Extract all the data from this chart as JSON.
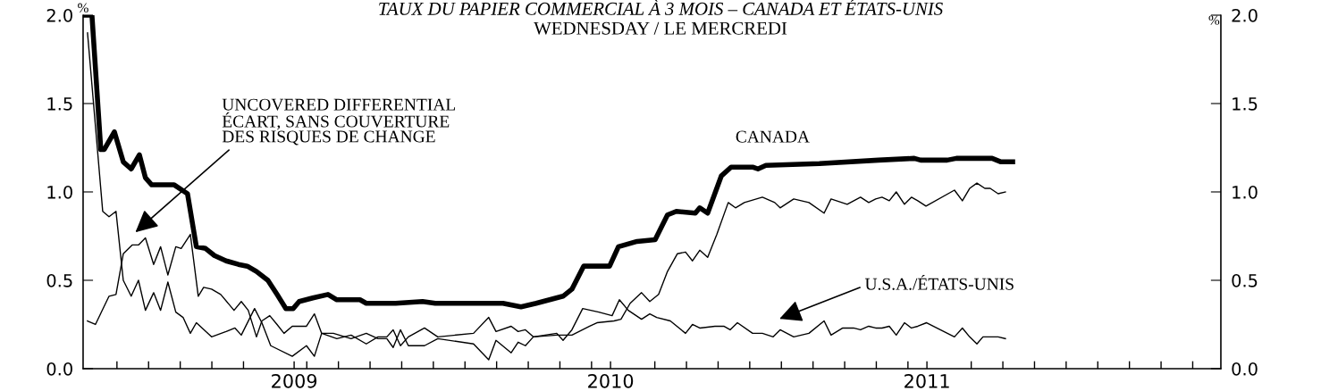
{
  "chart_data": {
    "type": "line",
    "title": "TAUX DU PAPIER COMMERCIAL À 3 MOIS – CANADA ET ÉTATS-UNIS",
    "subtitle": "WEDNESDAY / LE MERCREDI",
    "ylabel": "%",
    "y2label": "%",
    "series": [
      {
        "color": "#000000",
        "x": [
          2008.338,
          2008.361,
          2008.389,
          2008.4,
          2008.432,
          2008.46,
          2008.485,
          2008.511,
          2008.53,
          2008.55,
          2008.621,
          2008.663,
          2008.691,
          2008.72,
          2008.748,
          2008.785,
          2008.824,
          2008.852,
          2008.881,
          2008.917,
          2008.946,
          2008.974,
          2008.997,
          2009.016,
          2009.059,
          2009.107,
          2009.135,
          2009.208,
          2009.228,
          2009.321,
          2009.406,
          2009.446,
          2009.567,
          2009.66,
          2009.717,
          2009.765,
          2009.85,
          2009.878,
          2009.915,
          2009.997,
          2010.025,
          2010.084,
          2010.141,
          2010.18,
          2010.208,
          2010.268,
          2010.282,
          2010.307,
          2010.35,
          2010.381,
          2010.451,
          2010.466,
          2010.491,
          2010.66,
          2010.847,
          2010.96,
          2010.98,
          2011.064,
          2011.093,
          2011.206,
          2011.234,
          2011.271
        ],
        "values": [
          2.0,
          2.0,
          1.24,
          1.24,
          1.34,
          1.17,
          1.13,
          1.21,
          1.08,
          1.04,
          1.04,
          0.99,
          0.69,
          0.68,
          0.64,
          0.61,
          0.59,
          0.58,
          0.55,
          0.5,
          0.42,
          0.34,
          0.34,
          0.38,
          0.4,
          0.42,
          0.39,
          0.39,
          0.37,
          0.37,
          0.38,
          0.37,
          0.37,
          0.37,
          0.35,
          0.37,
          0.41,
          0.45,
          0.58,
          0.58,
          0.69,
          0.72,
          0.73,
          0.87,
          0.89,
          0.88,
          0.91,
          0.88,
          1.09,
          1.14,
          1.14,
          1.13,
          1.15,
          1.16,
          1.18,
          1.19,
          1.18,
          1.18,
          1.19,
          1.19,
          1.17,
          1.17
        ]
      },
      {
        "color": "#000000",
        "x": [
          2008.347,
          2008.372,
          2008.415,
          2008.437,
          2008.46,
          2008.488,
          2008.508,
          2008.53,
          2008.556,
          2008.578,
          2008.601,
          2008.626,
          2008.643,
          2008.672,
          2008.697,
          2008.714,
          2008.739,
          2008.768,
          2008.81,
          2008.833,
          2008.855,
          2008.881,
          2008.898,
          2008.923,
          2008.946,
          2008.968,
          2008.994,
          2009.039,
          2009.064,
          2009.087,
          2009.135,
          2009.18,
          2009.228,
          2009.265,
          2009.293,
          2009.313,
          2009.336,
          2009.361,
          2009.412,
          2009.454,
          2009.567,
          2009.615,
          2009.638,
          2009.686,
          2009.708,
          2009.731,
          2009.756,
          2009.83,
          2009.85,
          2009.878,
          2009.912,
          2009.963,
          2010.005,
          2010.028,
          2010.056,
          2010.098,
          2010.124,
          2010.146,
          2010.189,
          2010.237,
          2010.259,
          2010.282,
          2010.33,
          2010.358,
          2010.378,
          2010.401,
          2010.449,
          2010.48,
          2010.514,
          2010.536,
          2010.579,
          2010.627,
          2010.675,
          2010.697,
          2010.734,
          2010.768,
          2010.79,
          2010.816,
          2010.838,
          2010.858,
          2010.881,
          2010.903,
          2010.929,
          2010.951,
          2010.971,
          2010.999,
          2011.087,
          2011.112,
          2011.135,
          2011.158,
          2011.177,
          2011.2,
          2011.225,
          2011.248
        ],
        "values": [
          0.27,
          0.25,
          0.41,
          0.42,
          0.65,
          0.7,
          0.7,
          0.74,
          0.59,
          0.69,
          0.53,
          0.69,
          0.68,
          0.76,
          0.41,
          0.46,
          0.45,
          0.42,
          0.33,
          0.38,
          0.33,
          0.18,
          0.27,
          0.3,
          0.25,
          0.2,
          0.24,
          0.24,
          0.31,
          0.2,
          0.17,
          0.19,
          0.14,
          0.18,
          0.18,
          0.22,
          0.13,
          0.18,
          0.23,
          0.18,
          0.2,
          0.29,
          0.21,
          0.24,
          0.21,
          0.22,
          0.18,
          0.2,
          0.16,
          0.22,
          0.34,
          0.32,
          0.3,
          0.39,
          0.33,
          0.28,
          0.31,
          0.29,
          0.27,
          0.2,
          0.25,
          0.23,
          0.24,
          0.24,
          0.22,
          0.26,
          0.2,
          0.2,
          0.18,
          0.22,
          0.18,
          0.2,
          0.27,
          0.19,
          0.23,
          0.23,
          0.22,
          0.24,
          0.23,
          0.23,
          0.24,
          0.19,
          0.26,
          0.23,
          0.24,
          0.26,
          0.18,
          0.23,
          0.18,
          0.14,
          0.18,
          0.18,
          0.18,
          0.17
        ]
      },
      {
        "color": "#000000",
        "x": [
          2008.347,
          2008.395,
          2008.415,
          2008.437,
          2008.46,
          2008.485,
          2008.508,
          2008.53,
          2008.556,
          2008.578,
          2008.601,
          2008.626,
          2008.649,
          2008.672,
          2008.691,
          2008.739,
          2008.785,
          2008.813,
          2008.833,
          2008.875,
          2008.898,
          2008.926,
          2008.994,
          2009.039,
          2009.064,
          2009.087,
          2009.124,
          2009.18,
          2009.228,
          2009.265,
          2009.293,
          2009.313,
          2009.336,
          2009.361,
          2009.412,
          2009.454,
          2009.567,
          2009.615,
          2009.638,
          2009.686,
          2009.708,
          2009.731,
          2009.756,
          2009.83,
          2009.878,
          2009.934,
          2009.957,
          2010.011,
          2010.033,
          2010.062,
          2010.098,
          2010.124,
          2010.152,
          2010.18,
          2010.211,
          2010.237,
          2010.259,
          2010.282,
          2010.307,
          2010.336,
          2010.372,
          2010.395,
          2010.423,
          2010.48,
          2010.519,
          2010.536,
          2010.579,
          2010.627,
          2010.675,
          2010.697,
          2010.748,
          2010.79,
          2010.816,
          2010.838,
          2010.858,
          2010.881,
          2010.903,
          2010.929,
          2010.951,
          2010.971,
          2010.997,
          2011.087,
          2011.112,
          2011.135,
          2011.158,
          2011.183,
          2011.2,
          2011.225,
          2011.248
        ],
        "values": [
          1.9,
          0.89,
          0.86,
          0.89,
          0.5,
          0.41,
          0.5,
          0.33,
          0.43,
          0.33,
          0.49,
          0.32,
          0.29,
          0.2,
          0.26,
          0.18,
          0.21,
          0.23,
          0.19,
          0.34,
          0.26,
          0.13,
          0.07,
          0.13,
          0.07,
          0.2,
          0.2,
          0.17,
          0.2,
          0.17,
          0.17,
          0.12,
          0.22,
          0.13,
          0.13,
          0.17,
          0.14,
          0.05,
          0.16,
          0.09,
          0.15,
          0.13,
          0.18,
          0.19,
          0.19,
          0.24,
          0.26,
          0.27,
          0.28,
          0.37,
          0.43,
          0.38,
          0.42,
          0.55,
          0.65,
          0.66,
          0.61,
          0.67,
          0.63,
          0.76,
          0.94,
          0.91,
          0.94,
          0.97,
          0.94,
          0.91,
          0.96,
          0.94,
          0.88,
          0.96,
          0.93,
          0.97,
          0.94,
          0.96,
          0.97,
          0.95,
          1.0,
          0.93,
          0.97,
          0.95,
          0.92,
          1.01,
          0.95,
          1.02,
          1.05,
          1.02,
          1.02,
          0.99,
          1.0
        ]
      }
    ],
    "annotations": [
      "UNCOVERED DIFFERENTIAL\nÉCART, SANS COUVERTURE\nDES RISQUES DE CHANGE",
      "CANADA",
      "U.S.A./ÉTATS-UNIS"
    ],
    "xlim": [
      2008.333,
      2011.929
    ],
    "xticks": [
      2009,
      2010,
      2011,
      {
        "value": 2008.44,
        "label": null
      },
      {
        "value": 2008.54,
        "label": null
      },
      {
        "value": 2008.64,
        "label": null
      },
      {
        "value": 2008.74,
        "label": null
      },
      {
        "value": 2008.84,
        "label": null
      },
      {
        "value": 2009.04,
        "label": null
      },
      {
        "value": 2009.14,
        "label": null
      },
      {
        "value": 2009.24,
        "label": null
      },
      {
        "value": 2009.34,
        "label": null
      },
      {
        "value": 2009.44,
        "label": null
      },
      {
        "value": 2009.54,
        "label": null
      },
      {
        "value": 2009.64,
        "label": null
      },
      {
        "value": 2009.74,
        "label": null
      },
      {
        "value": 2009.84,
        "label": null
      },
      {
        "value": 2009.94,
        "label": null
      },
      {
        "value": 2010.14,
        "label": null
      },
      {
        "value": 2010.24,
        "label": null
      },
      {
        "value": 2010.34,
        "label": null
      },
      {
        "value": 2010.44,
        "label": null
      },
      {
        "value": 2010.54,
        "label": null
      },
      {
        "value": 2010.64,
        "label": null
      },
      {
        "value": 2010.74,
        "label": null
      },
      {
        "value": 2010.84,
        "label": null
      },
      {
        "value": 2010.94,
        "label": null
      },
      {
        "value": 2011.14,
        "label": null
      },
      {
        "value": 2011.24,
        "label": null
      },
      {
        "value": 2011.34,
        "label": null
      },
      {
        "value": 2011.44,
        "label": null
      },
      {
        "value": 2011.54,
        "label": null
      },
      {
        "value": 2011.64,
        "label": null
      },
      {
        "value": 2011.74,
        "label": null
      },
      {
        "value": 2011.84,
        "label": null
      }
    ],
    "ylim": [
      0,
      2
    ],
    "yticks": [
      {
        "value": 0,
        "label": "0.0"
      },
      {
        "value": 0.5,
        "label": "0.5"
      },
      {
        "value": 1,
        "label": "1.0"
      },
      {
        "value": 1.5,
        "label": "1.5"
      },
      {
        "value": 2,
        "label": "2.0"
      }
    ],
    "y2lim": [
      0,
      2
    ],
    "y2ticks": [
      {
        "value": 0,
        "label": "0.0"
      },
      {
        "value": 0.5,
        "label": "0.5"
      },
      {
        "value": 1,
        "label": "1.0"
      },
      {
        "value": 1.5,
        "label": "1.5"
      },
      {
        "value": 2,
        "label": "2.0"
      }
    ],
    "grid": false,
    "legend": false,
    "marker": "none",
    "line_style": "solid"
  }
}
